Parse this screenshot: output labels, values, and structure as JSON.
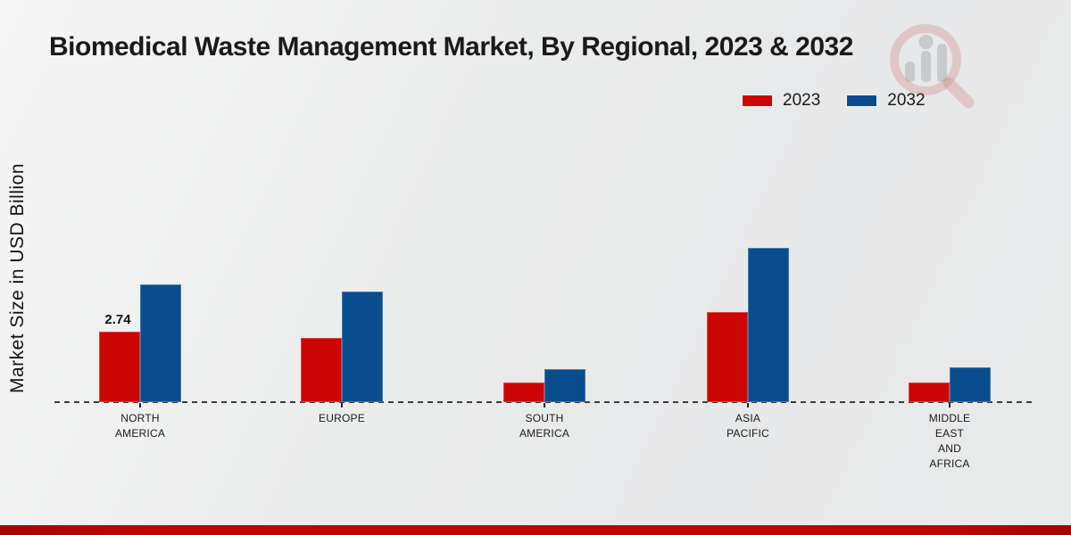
{
  "page": {
    "watermark_icon": "magnifier-bar-chart-logo"
  },
  "colors": {
    "series_2023": "#cc0505",
    "series_2032": "#0a4d8e",
    "footer_bar": "#bf0606",
    "axis_dash": "#3c3c3c",
    "text": "#1a1a1a"
  },
  "legend": {
    "items": [
      {
        "label": "2023",
        "color": "#cc0505"
      },
      {
        "label": "2032",
        "color": "#0a4d8e"
      }
    ]
  },
  "chart_data": {
    "type": "bar",
    "title": "Biomedical Waste Management Market, By Regional, 2023 & 2032",
    "xlabel": "",
    "ylabel": "Market Size in USD Billion",
    "categories": [
      "NORTH\nAMERICA",
      "EUROPE",
      "SOUTH\nAMERICA",
      "ASIA\nPACIFIC",
      "MIDDLE\nEAST\nAND\nAFRICA"
    ],
    "series": [
      {
        "name": "2023",
        "color": "#cc0505",
        "values": [
          2.74,
          2.5,
          0.78,
          3.5,
          0.77
        ]
      },
      {
        "name": "2032",
        "color": "#0a4d8e",
        "values": [
          4.6,
          4.3,
          1.28,
          6.0,
          1.37
        ]
      }
    ],
    "annotations": [
      {
        "series_index": 0,
        "category_index": 0,
        "text": "2.74"
      }
    ],
    "ylim": [
      0,
      7
    ],
    "grid": false,
    "legend_position": "top-right",
    "baseline_style": "dashed",
    "bar_value_labels_visible": "only North America 2023"
  }
}
